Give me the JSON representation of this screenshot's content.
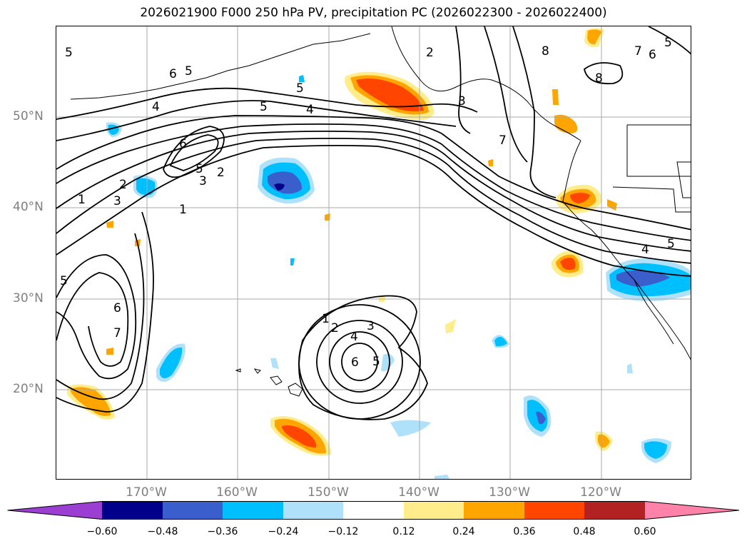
{
  "title": "2026021900 F000 250 hPa PV, precipitation PC (2026022300 - 2026022400)",
  "lon_labels": [
    "170°W",
    "160°W",
    "150°W",
    "140°W",
    "130°W",
    "120°W"
  ],
  "lat_labels": [
    "50°N",
    "40°N",
    "30°N",
    "20°N"
  ],
  "map_extent": {
    "lon_min": -180,
    "lon_max": -110,
    "lat_min": 10,
    "lat_max": 60
  },
  "colorbar": {
    "ticks": [
      "−0.60",
      "−0.48",
      "−0.36",
      "−0.24",
      "−0.12",
      "0.12",
      "0.24",
      "0.36",
      "0.48",
      "0.60"
    ],
    "tick_values": [
      -0.6,
      -0.48,
      -0.36,
      -0.24,
      -0.12,
      0.12,
      0.24,
      0.36,
      0.48,
      0.6
    ],
    "colors": [
      "#9a3fd1",
      "#00008b",
      "#3a5fcd",
      "#00bfff",
      "#afe1fa",
      "#ffffff",
      "#ffec8b",
      "#ffa500",
      "#ff4500",
      "#b22222",
      "#ff82ab"
    ]
  },
  "pv_contour_labels": [
    "1",
    "2",
    "3",
    "4",
    "5",
    "6",
    "7",
    "8"
  ],
  "colors": {
    "contour": "#000000",
    "grid": "#a9a9a9",
    "axis_text": "#7f7f7f"
  }
}
